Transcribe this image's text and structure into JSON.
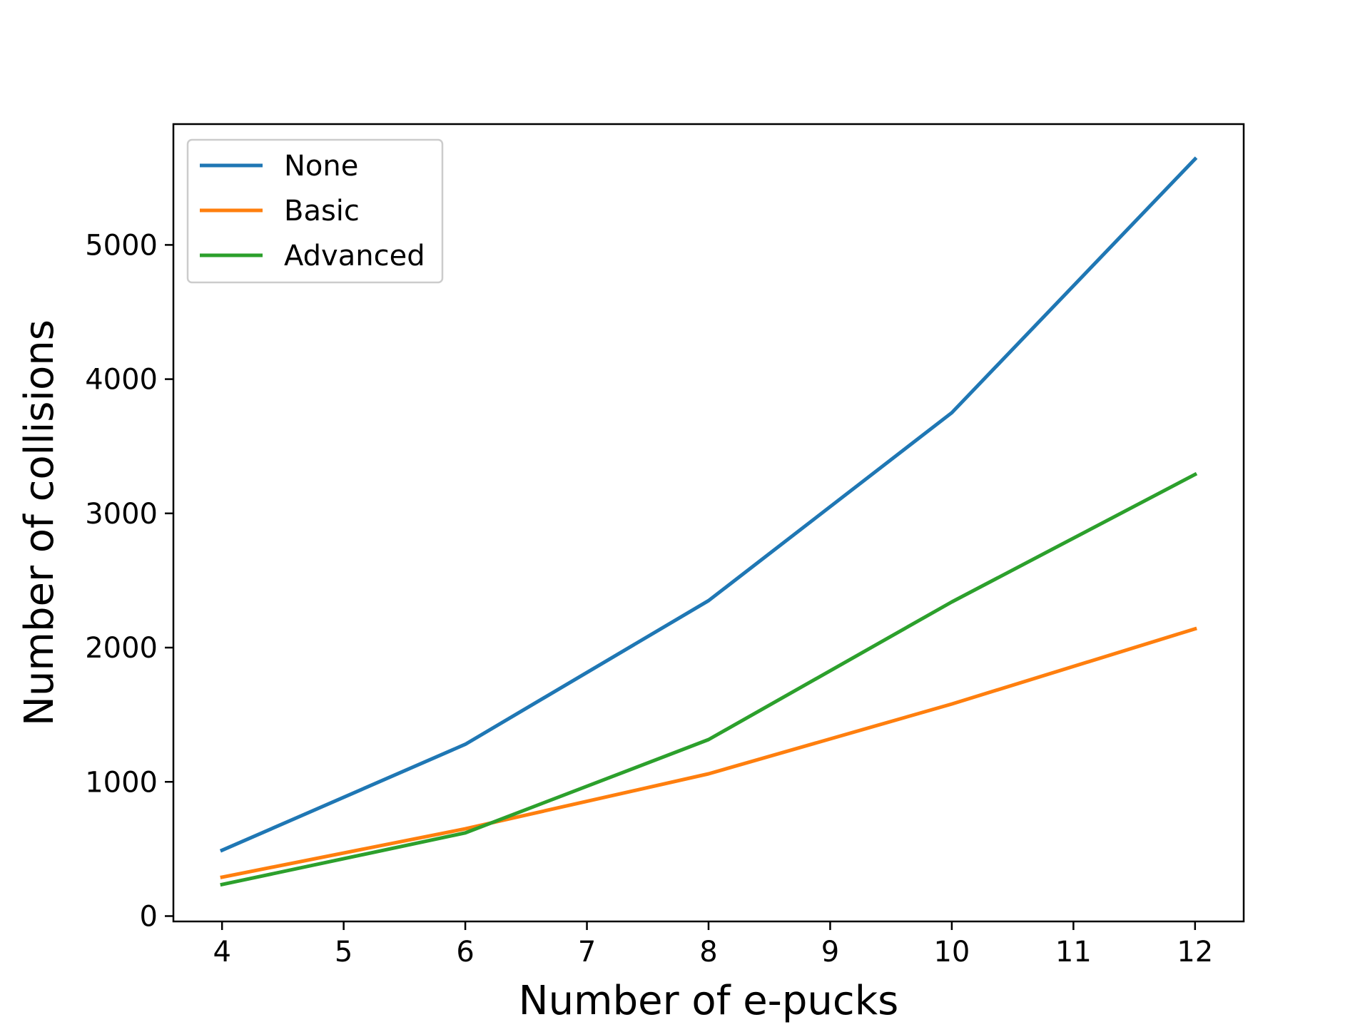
{
  "chart_data": {
    "type": "line",
    "title": "",
    "xlabel": "Number of e-pucks",
    "ylabel": "Number of collisions",
    "x": [
      4,
      6,
      8,
      10,
      12
    ],
    "xlim": [
      3.6,
      12.4
    ],
    "ylim": [
      -40,
      5900
    ],
    "xticks": [
      4,
      5,
      6,
      7,
      8,
      9,
      10,
      11,
      12
    ],
    "yticks": [
      0,
      1000,
      2000,
      3000,
      4000,
      5000
    ],
    "grid": false,
    "legend_position": "upper left",
    "series": [
      {
        "name": "None",
        "color": "#1f77b4",
        "values": [
          490,
          1280,
          2350,
          3750,
          5640
        ]
      },
      {
        "name": "Basic",
        "color": "#ff7f0e",
        "values": [
          290,
          650,
          1060,
          1580,
          2140
        ]
      },
      {
        "name": "Advanced",
        "color": "#2ca02c",
        "values": [
          235,
          620,
          1315,
          2340,
          3290
        ]
      }
    ]
  }
}
